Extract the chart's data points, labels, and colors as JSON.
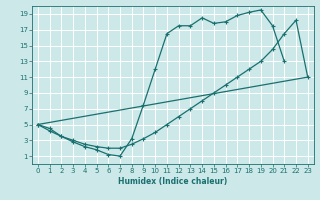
{
  "title": "",
  "xlabel": "Humidex (Indice chaleur)",
  "bg_color": "#cce8e8",
  "grid_color": "#ffffff",
  "line_color": "#1a7070",
  "xlim": [
    -0.5,
    23.5
  ],
  "ylim": [
    0,
    20
  ],
  "xticks": [
    0,
    1,
    2,
    3,
    4,
    5,
    6,
    7,
    8,
    9,
    10,
    11,
    12,
    13,
    14,
    15,
    16,
    17,
    18,
    19,
    20,
    21,
    22,
    23
  ],
  "yticks": [
    1,
    3,
    5,
    7,
    9,
    11,
    13,
    15,
    17,
    19
  ],
  "s1x": [
    0,
    1,
    2,
    3,
    4,
    5,
    6,
    7,
    8,
    9,
    10,
    11,
    12,
    13,
    14,
    15,
    16,
    17,
    18,
    19,
    20,
    21
  ],
  "s1y": [
    5,
    4.5,
    3.5,
    2.8,
    2.2,
    1.8,
    1.2,
    1.0,
    3.2,
    7.5,
    12.0,
    16.5,
    17.5,
    17.5,
    18.5,
    17.8,
    18.0,
    18.8,
    19.2,
    19.5,
    17.5,
    13.0
  ],
  "s2x": [
    0,
    1,
    2,
    3,
    4,
    5,
    6,
    7,
    8,
    9,
    10,
    11,
    12,
    13,
    14,
    15,
    16,
    17,
    18,
    19,
    20,
    21,
    22,
    23
  ],
  "s2y": [
    5,
    4.2,
    3.5,
    3.0,
    2.5,
    2.2,
    2.0,
    2.0,
    2.5,
    3.2,
    4.0,
    5.0,
    6.0,
    7.0,
    8.0,
    9.0,
    10.0,
    11.0,
    12.0,
    13.0,
    14.5,
    16.5,
    18.2,
    11.0
  ],
  "s3x": [
    0,
    23
  ],
  "s3y": [
    5,
    11
  ],
  "lw": 0.9,
  "ms": 3.5,
  "tick_fontsize": 5.0,
  "xlabel_fontsize": 5.5
}
